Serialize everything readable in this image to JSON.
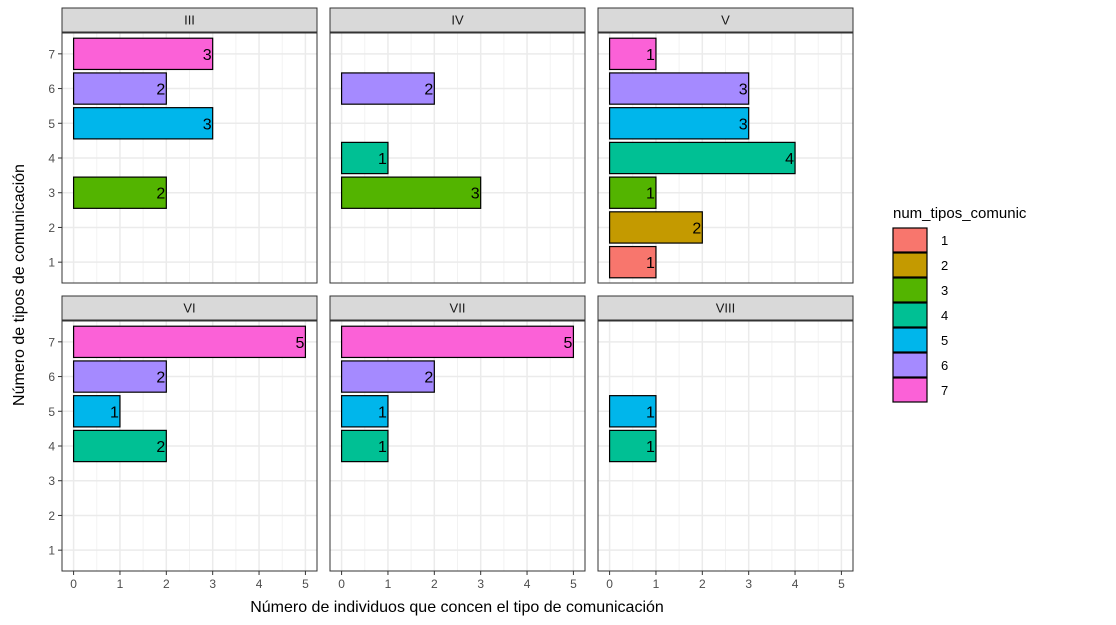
{
  "chart_data": {
    "type": "bar",
    "orientation": "horizontal",
    "facets": [
      "III",
      "IV",
      "V",
      "VI",
      "VII",
      "VIII"
    ],
    "xlabel": "Número de individuos que concen el tipo de comunicación",
    "ylabel": "Número de tipos de comunicación",
    "xlim": [
      0,
      5
    ],
    "ylim": [
      1,
      7
    ],
    "x_ticks": [
      "0",
      "1",
      "2",
      "3",
      "4",
      "5"
    ],
    "y_ticks": [
      "1",
      "2",
      "3",
      "4",
      "5",
      "6",
      "7"
    ],
    "grid": true,
    "legend": {
      "title": "num_tipos_comunic",
      "position": "right",
      "entries": [
        "1",
        "2",
        "3",
        "4",
        "5",
        "6",
        "7"
      ]
    },
    "colors": {
      "1": "#F8766D",
      "2": "#C49A00",
      "3": "#53B400",
      "4": "#00C094",
      "5": "#00B6EB",
      "6": "#A58AFF",
      "7": "#FB61D7"
    },
    "panels": [
      {
        "facet": "III",
        "bars": [
          {
            "type": 7,
            "value": 3
          },
          {
            "type": 6,
            "value": 2
          },
          {
            "type": 5,
            "value": 3
          },
          {
            "type": 3,
            "value": 2
          }
        ]
      },
      {
        "facet": "IV",
        "bars": [
          {
            "type": 6,
            "value": 2
          },
          {
            "type": 4,
            "value": 1
          },
          {
            "type": 3,
            "value": 3
          }
        ]
      },
      {
        "facet": "V",
        "bars": [
          {
            "type": 7,
            "value": 1
          },
          {
            "type": 6,
            "value": 3
          },
          {
            "type": 5,
            "value": 3
          },
          {
            "type": 4,
            "value": 4
          },
          {
            "type": 3,
            "value": 1
          },
          {
            "type": 2,
            "value": 2
          },
          {
            "type": 1,
            "value": 1
          }
        ]
      },
      {
        "facet": "VI",
        "bars": [
          {
            "type": 7,
            "value": 5
          },
          {
            "type": 6,
            "value": 2
          },
          {
            "type": 5,
            "value": 1
          },
          {
            "type": 4,
            "value": 2
          }
        ]
      },
      {
        "facet": "VII",
        "bars": [
          {
            "type": 7,
            "value": 5
          },
          {
            "type": 6,
            "value": 2
          },
          {
            "type": 5,
            "value": 1
          },
          {
            "type": 4,
            "value": 1
          }
        ]
      },
      {
        "facet": "VIII",
        "bars": [
          {
            "type": 5,
            "value": 1
          },
          {
            "type": 4,
            "value": 1
          }
        ]
      }
    ]
  }
}
